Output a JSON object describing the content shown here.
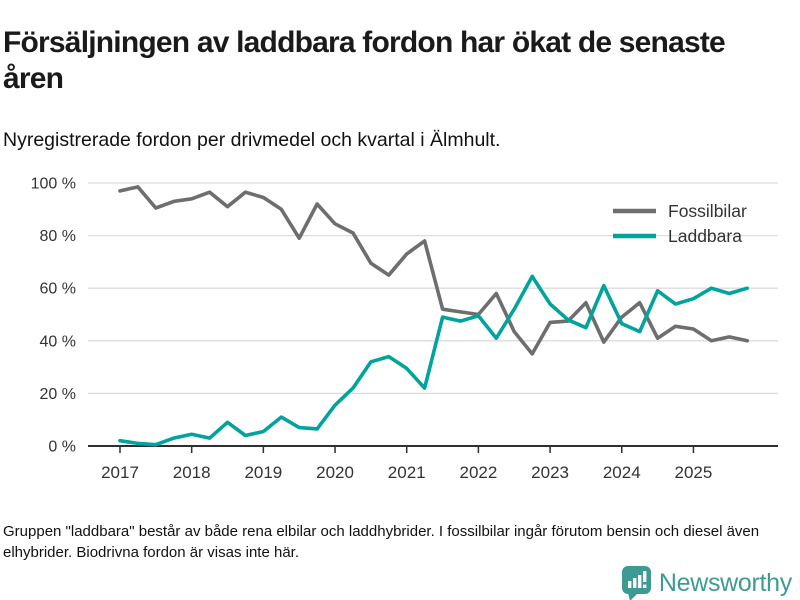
{
  "header": {
    "title": "Försäljningen av laddbara fordon har ökat de senaste åren",
    "subtitle": "Nyregistrerade fordon per drivmedel och kvartal i Älmhult."
  },
  "chart_data": {
    "type": "line",
    "title": "Försäljningen av laddbara fordon har ökat de senaste åren",
    "subtitle": "Nyregistrerade fordon per drivmedel och kvartal i Älmhult.",
    "x_unit": "quarter",
    "categories": [
      "2017 Q1",
      "2017 Q2",
      "2017 Q3",
      "2017 Q4",
      "2018 Q1",
      "2018 Q2",
      "2018 Q3",
      "2018 Q4",
      "2019 Q1",
      "2019 Q2",
      "2019 Q3",
      "2019 Q4",
      "2020 Q1",
      "2020 Q2",
      "2020 Q3",
      "2020 Q4",
      "2021 Q1",
      "2021 Q2",
      "2021 Q3",
      "2021 Q4",
      "2022 Q1",
      "2022 Q2",
      "2022 Q3",
      "2022 Q4",
      "2023 Q1",
      "2023 Q2",
      "2023 Q3",
      "2023 Q4",
      "2024 Q1",
      "2024 Q2",
      "2024 Q3",
      "2024 Q4",
      "2025 Q1",
      "2025 Q2",
      "2025 Q3",
      "2025 Q4"
    ],
    "series": [
      {
        "name": "Fossilbilar",
        "color": "#6d6e70",
        "values": [
          97,
          98.5,
          90.5,
          93,
          94,
          96.5,
          91,
          96.5,
          94.5,
          90,
          79,
          92,
          84.5,
          81,
          69.5,
          65,
          73,
          78,
          52,
          51,
          50,
          58,
          43.5,
          35,
          47,
          47.5,
          54.5,
          39.5,
          49,
          54.5,
          41,
          45.5,
          44.5,
          40,
          41.5,
          40
        ]
      },
      {
        "name": "Laddbara",
        "color": "#00a49d",
        "values": [
          2,
          1,
          0.5,
          3,
          4.5,
          3,
          9,
          4,
          5.5,
          11,
          7,
          6.5,
          15.5,
          22,
          32,
          34,
          29.5,
          22,
          49,
          47.5,
          49.5,
          41,
          52,
          64.5,
          54,
          48,
          45,
          61,
          46.5,
          43.5,
          59,
          54,
          56,
          60,
          58,
          60
        ]
      }
    ],
    "xticklabels": [
      "2017",
      "2018",
      "2019",
      "2020",
      "2021",
      "2022",
      "2023",
      "2024",
      "2025"
    ],
    "yticks": [
      0,
      20,
      40,
      60,
      80,
      100
    ],
    "ytick_suffix": " %",
    "ylim": [
      0,
      100
    ],
    "grid": "horizontal",
    "legend_position": "top-right",
    "axis_color": "#2f2f2f",
    "gridline_color": "#dddddd"
  },
  "footer": {
    "footnote": "Gruppen \"laddbara\" består av både rena elbilar och laddhybrider. I fossilbilar ingår förutom bensin och diesel även elhybrider. Biodrivna fordon är visas inte här.",
    "logo_text": "Newsworthy",
    "logo_icon": "newsworthy-speech-bubble-chart-icon",
    "logo_color": "#3e9b94"
  }
}
